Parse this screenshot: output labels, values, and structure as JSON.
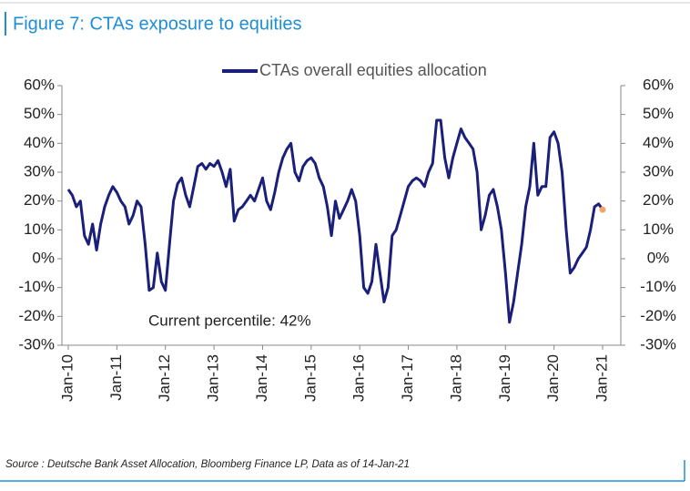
{
  "chart_data": {
    "type": "line",
    "title": "Figure 7: CTAs exposure to equities",
    "annotation": "Current percentile: 42%",
    "source": "Source : Deutsche Bank Asset Allocation, Bloomberg Finance LP, Data as of 14-Jan-21",
    "x": [
      "2010-01",
      "2010-02",
      "2010-03",
      "2010-04",
      "2010-05",
      "2010-06",
      "2010-07",
      "2010-08",
      "2010-09",
      "2010-10",
      "2010-11",
      "2010-12",
      "2011-01",
      "2011-02",
      "2011-03",
      "2011-04",
      "2011-05",
      "2011-06",
      "2011-07",
      "2011-08",
      "2011-09",
      "2011-10",
      "2011-11",
      "2011-12",
      "2012-01",
      "2012-02",
      "2012-03",
      "2012-04",
      "2012-05",
      "2012-06",
      "2012-07",
      "2012-08",
      "2012-09",
      "2012-10",
      "2012-11",
      "2012-12",
      "2013-01",
      "2013-02",
      "2013-03",
      "2013-04",
      "2013-05",
      "2013-06",
      "2013-07",
      "2013-08",
      "2013-09",
      "2013-10",
      "2013-11",
      "2013-12",
      "2014-01",
      "2014-02",
      "2014-03",
      "2014-04",
      "2014-05",
      "2014-06",
      "2014-07",
      "2014-08",
      "2014-09",
      "2014-10",
      "2014-11",
      "2014-12",
      "2015-01",
      "2015-02",
      "2015-03",
      "2015-04",
      "2015-05",
      "2015-06",
      "2015-07",
      "2015-08",
      "2015-09",
      "2015-10",
      "2015-11",
      "2015-12",
      "2016-01",
      "2016-02",
      "2016-03",
      "2016-04",
      "2016-05",
      "2016-06",
      "2016-07",
      "2016-08",
      "2016-09",
      "2016-10",
      "2016-11",
      "2016-12",
      "2017-01",
      "2017-02",
      "2017-03",
      "2017-04",
      "2017-05",
      "2017-06",
      "2017-07",
      "2017-08",
      "2017-09",
      "2017-10",
      "2017-11",
      "2017-12",
      "2018-01",
      "2018-02",
      "2018-03",
      "2018-04",
      "2018-05",
      "2018-06",
      "2018-07",
      "2018-08",
      "2018-09",
      "2018-10",
      "2018-11",
      "2018-12",
      "2019-01",
      "2019-02",
      "2019-03",
      "2019-04",
      "2019-05",
      "2019-06",
      "2019-07",
      "2019-08",
      "2019-09",
      "2019-10",
      "2019-11",
      "2019-12",
      "2020-01",
      "2020-02",
      "2020-03",
      "2020-04",
      "2020-05",
      "2020-06",
      "2020-07",
      "2020-08",
      "2020-09",
      "2020-10",
      "2020-11",
      "2020-12",
      "2021-01"
    ],
    "series": [
      {
        "name": "CTAs overall equities allocation",
        "color": "#1a1f7a",
        "values": [
          24,
          22,
          18,
          20,
          8,
          5,
          12,
          3,
          12,
          18,
          22,
          25,
          23,
          20,
          18,
          12,
          15,
          20,
          18,
          5,
          -11,
          -10,
          2,
          -8,
          -11,
          5,
          20,
          26,
          28,
          22,
          18,
          25,
          32,
          33,
          31,
          33,
          32,
          34,
          30,
          25,
          31,
          13,
          17,
          18,
          20,
          22,
          20,
          24,
          28,
          20,
          17,
          23,
          30,
          35,
          38,
          40,
          30,
          27,
          32,
          34,
          35,
          33,
          28,
          25,
          18,
          8,
          20,
          14,
          17,
          20,
          24,
          20,
          8,
          -10,
          -12,
          -8,
          5,
          -5,
          -15,
          -10,
          8,
          10,
          15,
          20,
          25,
          27,
          28,
          27,
          25,
          30,
          33,
          48,
          48,
          35,
          28,
          35,
          40,
          45,
          42,
          40,
          38,
          30,
          10,
          15,
          22,
          24,
          18,
          10,
          -5,
          -22,
          -15,
          -5,
          5,
          18,
          25,
          40,
          22,
          25,
          25,
          42,
          44,
          40,
          30,
          10,
          -5,
          -3,
          0,
          2,
          4,
          10,
          18,
          19,
          17
        ]
      }
    ],
    "current_point": {
      "x": "2021-01",
      "value": 17,
      "color": "#f4a46a"
    },
    "xlim": [
      "2010-01",
      "2021-01"
    ],
    "xticks": [
      {
        "value": "2010-01",
        "label": "Jan-10"
      },
      {
        "value": "2011-01",
        "label": "Jan-11"
      },
      {
        "value": "2012-01",
        "label": "Jan-12"
      },
      {
        "value": "2013-01",
        "label": "Jan-13"
      },
      {
        "value": "2014-01",
        "label": "Jan-14"
      },
      {
        "value": "2015-01",
        "label": "Jan-15"
      },
      {
        "value": "2016-01",
        "label": "Jan-16"
      },
      {
        "value": "2017-01",
        "label": "Jan-17"
      },
      {
        "value": "2018-01",
        "label": "Jan-18"
      },
      {
        "value": "2019-01",
        "label": "Jan-19"
      },
      {
        "value": "2020-01",
        "label": "Jan-20"
      },
      {
        "value": "2021-01",
        "label": "Jan-21"
      }
    ],
    "ylim": [
      -30,
      60
    ],
    "yticks": [
      {
        "value": -30,
        "label": "-30%"
      },
      {
        "value": -20,
        "label": "-20%"
      },
      {
        "value": -10,
        "label": "-10%"
      },
      {
        "value": 0,
        "label": "0%"
      },
      {
        "value": 10,
        "label": "10%"
      },
      {
        "value": 20,
        "label": "20%"
      },
      {
        "value": 30,
        "label": "30%"
      },
      {
        "value": 40,
        "label": "40%"
      },
      {
        "value": 50,
        "label": "50%"
      },
      {
        "value": 60,
        "label": "60%"
      }
    ],
    "y2lim": [
      -30,
      60
    ],
    "y2ticks": [
      {
        "value": -30,
        "label": "-30%"
      },
      {
        "value": -20,
        "label": "-20%"
      },
      {
        "value": -10,
        "label": "-10%"
      },
      {
        "value": 0,
        "label": "0%"
      },
      {
        "value": 10,
        "label": "10%"
      },
      {
        "value": 20,
        "label": "20%"
      },
      {
        "value": 30,
        "label": "30%"
      },
      {
        "value": 40,
        "label": "40%"
      },
      {
        "value": 50,
        "label": "50%"
      },
      {
        "value": 60,
        "label": "60%"
      }
    ]
  }
}
